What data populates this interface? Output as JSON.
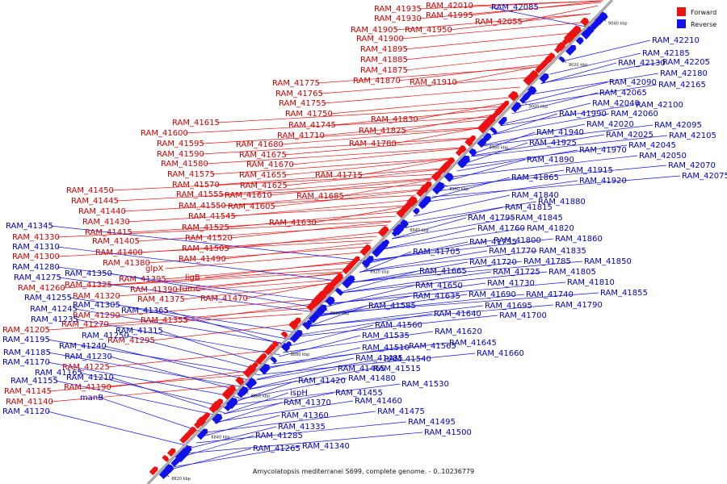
{
  "caption": "Amycolatopsis mediterranei S699, complete genome. - 0..10236779",
  "legend": [
    {
      "label": "Forward",
      "color": "#ee1111"
    },
    {
      "label": "Reverse",
      "color": "#1111ee"
    }
  ],
  "colors": {
    "forward": "#ee1111",
    "reverse": "#1111ee",
    "axis": "#888888",
    "text_fwd": "#cc0000",
    "text_rev": "#0000bb"
  },
  "ticks": [
    "8820 kbp",
    "8840 kbp",
    "8860 kbp",
    "8880 kbp",
    "8900 kbp",
    "8920 kbp",
    "8940 kbp",
    "8960 kbp",
    "8980 kbp",
    "9000 kbp",
    "9020 kbp",
    "9040 kbp"
  ],
  "forward_labels": [
    "RAM_41935",
    "RAM_42010",
    "RAM_41930",
    "RAM_41995",
    "RAM_42055",
    "RAM_41905",
    "RAM_41950",
    "RAM_41900",
    "RAM_41895",
    "RAM_41885",
    "RAM_41875",
    "RAM_41870",
    "RAM_41910",
    "RAM_41775",
    "RAM_41765",
    "RAM_41755",
    "RAM_41750",
    "RAM_41830",
    "RAM_41745",
    "RAM_41825",
    "RAM_41615",
    "RAM_41710",
    "RAM_41600",
    "RAM_41780",
    "RAM_41680",
    "RAM_41595",
    "RAM_41675",
    "RAM_41590",
    "RAM_41580",
    "RAM_41670",
    "RAM_41715",
    "RAM_41575",
    "RAM_41655",
    "RAM_41570",
    "RAM_41625",
    "RAM_41555",
    "RAM_41610",
    "RAM_41685",
    "RAM_41550",
    "RAM_41605",
    "RAM_41545",
    "RAM_41630",
    "RAM_41525",
    "RAM_41520",
    "RAM_41505",
    "RAM_41490",
    "RAM_41450",
    "RAM_41445",
    "RAM_41440",
    "RAM_41430",
    "RAM_41415",
    "RAM_41405",
    "RAM_41400",
    "RAM_41380",
    "glpX",
    "RAM_41395",
    "ligB",
    "RAM_41390",
    "fumC",
    "RAM_41375",
    "RAM_41470",
    "RAM_41355",
    "RAM_41295",
    "RAM_41330",
    "RAM_41300",
    "RAM_41325",
    "RAM_41260",
    "RAM_41320",
    "RAM_41290",
    "RAM_41270",
    "RAM_41205",
    "RAM_41225",
    "RAM_41190",
    "RAM_41145",
    "RAM_41140"
  ],
  "reverse_labels": [
    "RAM_42085",
    "RAM_42210",
    "RAM_42185",
    "RAM_42130",
    "RAM_42205",
    "RAM_42180",
    "RAM_42165",
    "RAM_42090",
    "RAM_42065",
    "RAM_42100",
    "RAM_42040",
    "RAM_41990",
    "RAM_42060",
    "RAM_42020",
    "RAM_42095",
    "RAM_42025",
    "RAM_42105",
    "RAM_42045",
    "RAM_41940",
    "RAM_41925",
    "RAM_41970",
    "RAM_42050",
    "RAM_42070",
    "RAM_42075",
    "RAM_41890",
    "RAM_41915",
    "RAM_41865",
    "RAM_41920",
    "RAM_41840",
    "RAM_41880",
    "RAM_41815",
    "RAM_41795",
    "RAM_41845",
    "RAM_41760",
    "RAM_41820",
    "RAM_41735",
    "RAM_41800",
    "RAM_41860",
    "RAM_41705",
    "RAM_41770",
    "RAM_41835",
    "RAM_41720",
    "RAM_41785",
    "RAM_41850",
    "RAM_41665",
    "RAM_41725",
    "RAM_41805",
    "RAM_41730",
    "RAM_41810",
    "RAM_41650",
    "RAM_41690",
    "RAM_41740",
    "RAM_41855",
    "RAM_41635",
    "RAM_41695",
    "RAM_41790",
    "RAM_41585",
    "RAM_41640",
    "RAM_41700",
    "RAM_41560",
    "RAM_41620",
    "RAM_41535",
    "RAM_41645",
    "RAM_41510",
    "RAM_41565",
    "RAM_41660",
    "RAM_41485",
    "RAM_41540",
    "RAM_41465",
    "RAM_41515",
    "RAM_41420",
    "RAM_41480",
    "RAM_41530",
    "ispH",
    "RAM_41455",
    "RAM_41370",
    "RAM_41460",
    "RAM_41475",
    "RAM_41360",
    "RAM_41495",
    "RAM_41335",
    "RAM_41500",
    "RAM_41285",
    "RAM_41340",
    "RAM_41265",
    "RAM_41345",
    "RAM_41310",
    "RAM_41280",
    "RAM_41350",
    "RAM_41275",
    "RAM_41255",
    "RAM_41305",
    "RAM_41245",
    "RAM_41365",
    "RAM_41235",
    "RAM_41250",
    "RAM_41315",
    "RAM_41195",
    "RAM_41240",
    "RAM_41185",
    "RAM_41230",
    "RAM_41170",
    "RAM_41165",
    "RAM_41155",
    "RAM_41210",
    "manB",
    "RAM_41120"
  ]
}
